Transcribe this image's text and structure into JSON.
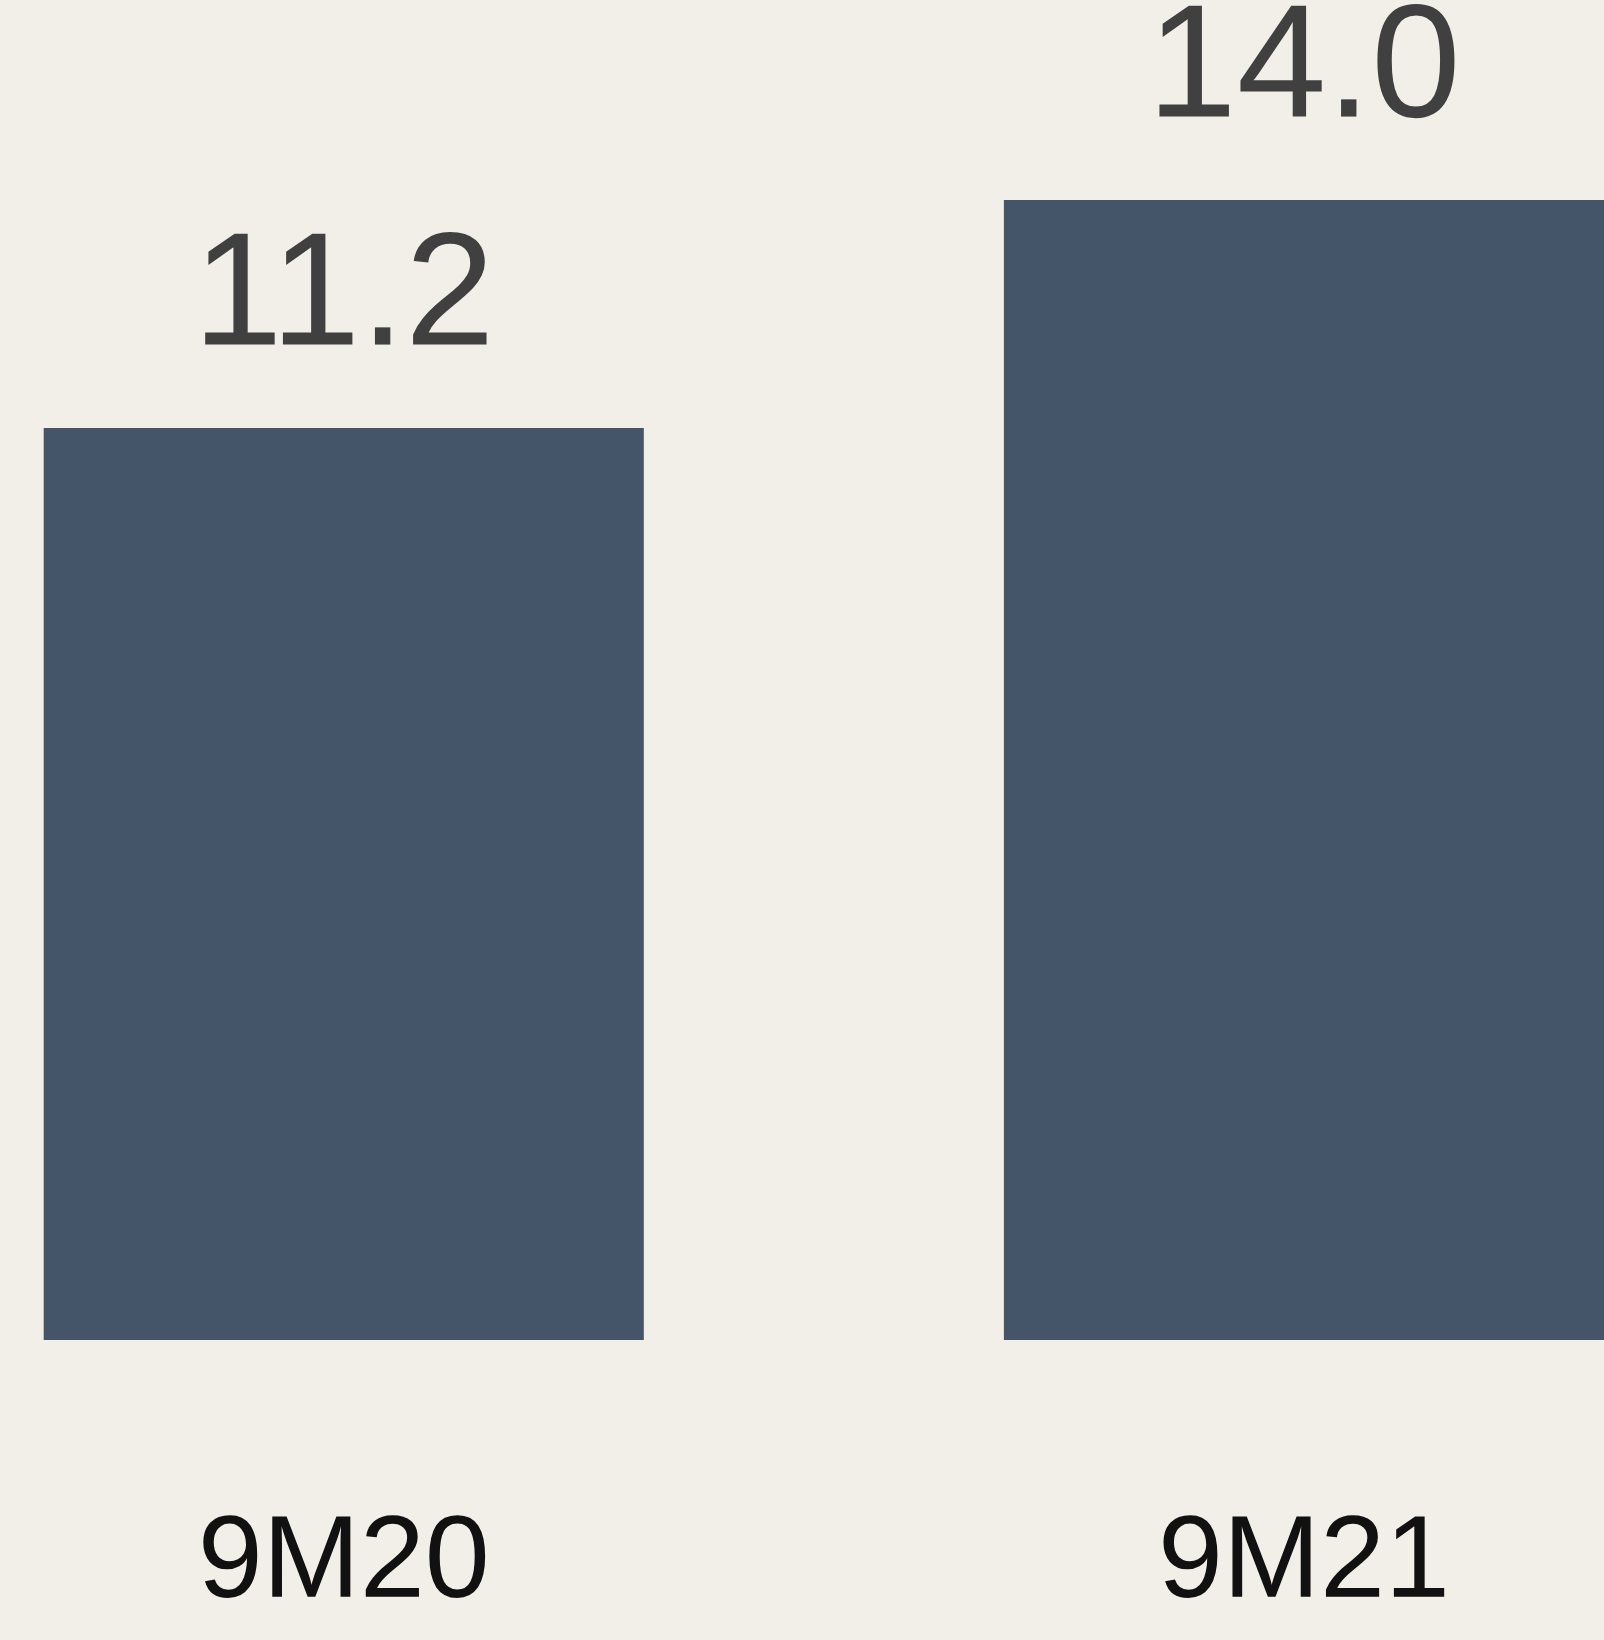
{
  "chart_data": {
    "type": "bar",
    "categories": [
      "9M20",
      "9M21"
    ],
    "values": [
      11.2,
      14.0
    ],
    "color": "#455569",
    "value_labels": [
      "11.2",
      "14.0"
    ],
    "grid": false,
    "legend": false,
    "tick_labels": "x"
  }
}
